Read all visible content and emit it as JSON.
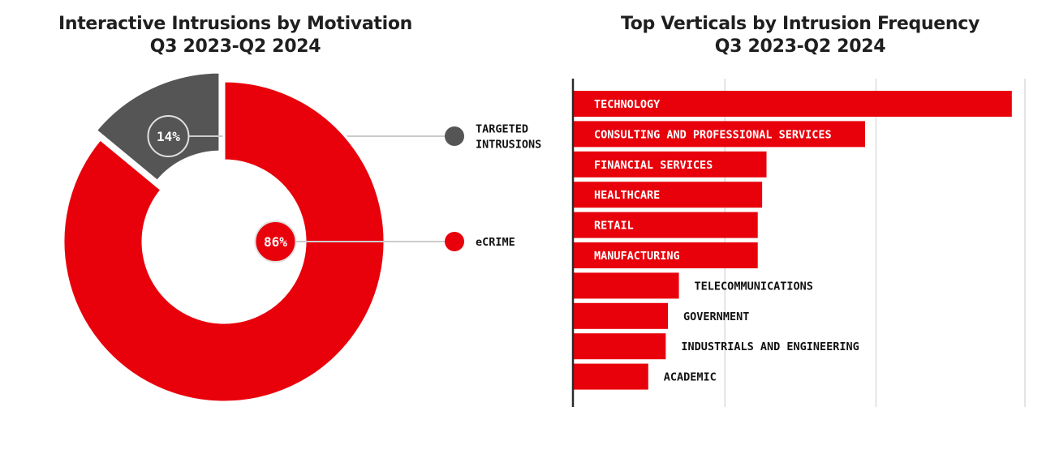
{
  "charts": {
    "left": {
      "title_line1": "Interactive Intrusions by Motivation",
      "title_line2": "Q3 2023-Q2 2024"
    },
    "right": {
      "title_line1": "Top Verticals by Intrusion Frequency",
      "title_line2": "Q3 2023-Q2 2024"
    }
  },
  "colors": {
    "red": "#e8000b",
    "gray": "#555555",
    "grid": "#dcdcdc",
    "axis": "#2a2a2a",
    "text": "#111111"
  },
  "chart_data": [
    {
      "type": "pie",
      "title": "Interactive Intrusions by Motivation Q3 2023-Q2 2024",
      "donut": true,
      "slices": [
        {
          "label": "TARGETED INTRUSIONS",
          "label_lines": [
            "TARGETED",
            "INTRUSIONS"
          ],
          "value": 14,
          "display": "14%",
          "color": "#555555"
        },
        {
          "label": "eCRIME",
          "label_lines": [
            "eCRIME"
          ],
          "value": 86,
          "display": "86%",
          "color": "#e8000b"
        }
      ],
      "legend": "right"
    },
    {
      "type": "bar",
      "orientation": "horizontal",
      "title": "Top Verticals by Intrusion Frequency Q3 2023-Q2 2024",
      "categories": [
        "TECHNOLOGY",
        "CONSULTING AND PROFESSIONAL SERVICES",
        "FINANCIAL SERVICES",
        "HEALTHCARE",
        "RETAIL",
        "MANUFACTURING",
        "TELECOMMUNICATIONS",
        "GOVERNMENT",
        "INDUSTRIALS AND ENGINEERING",
        "ACADEMIC"
      ],
      "values": [
        100,
        66.5,
        44,
        43,
        42,
        42,
        24,
        21.5,
        21,
        17
      ],
      "xlim": [
        0,
        103
      ],
      "gridlines": [
        34.5,
        69
      ],
      "grid": true,
      "color": "#e8000b"
    }
  ]
}
